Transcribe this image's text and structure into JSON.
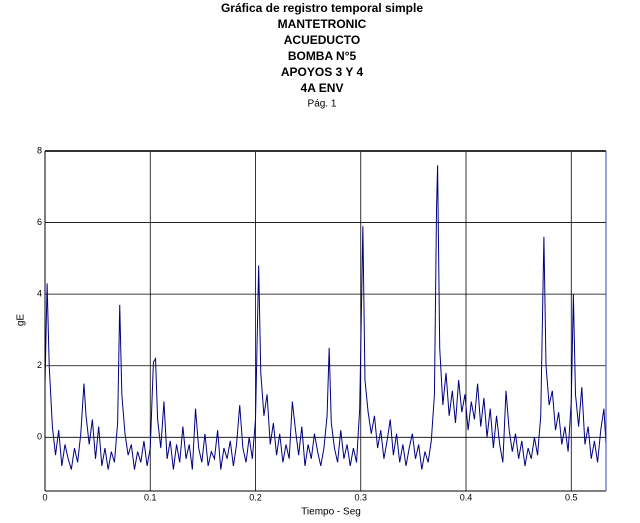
{
  "chart_data": {
    "type": "line",
    "title": "Gráfica de registro temporal simple",
    "subtitle": [
      "MANTETRONIC",
      "ACUEDUCTO",
      "BOMBA N°5",
      "APOYOS 3 Y 4",
      "4A ENV"
    ],
    "page_label": "Pág. 1",
    "xlabel": "Tiempo - Seg",
    "ylabel": "gE",
    "color": "#000080",
    "grid": true,
    "xlim": [
      0,
      0.533
    ],
    "ylim": [
      -1.5,
      8
    ],
    "xticks": [
      0,
      0.1,
      0.2,
      0.3,
      0.4,
      0.5
    ],
    "yticks": [
      0,
      2,
      4,
      6,
      8
    ],
    "x": [
      0.0,
      0.002,
      0.004,
      0.007,
      0.01,
      0.013,
      0.016,
      0.019,
      0.022,
      0.025,
      0.028,
      0.031,
      0.034,
      0.037,
      0.039,
      0.042,
      0.045,
      0.048,
      0.051,
      0.054,
      0.057,
      0.06,
      0.063,
      0.066,
      0.069,
      0.071,
      0.073,
      0.076,
      0.079,
      0.082,
      0.085,
      0.088,
      0.091,
      0.094,
      0.097,
      0.1,
      0.103,
      0.105,
      0.107,
      0.11,
      0.113,
      0.116,
      0.119,
      0.122,
      0.125,
      0.128,
      0.131,
      0.134,
      0.137,
      0.14,
      0.143,
      0.146,
      0.149,
      0.152,
      0.155,
      0.158,
      0.161,
      0.164,
      0.167,
      0.17,
      0.173,
      0.176,
      0.179,
      0.182,
      0.185,
      0.188,
      0.191,
      0.194,
      0.197,
      0.2,
      0.203,
      0.205,
      0.208,
      0.211,
      0.214,
      0.217,
      0.22,
      0.223,
      0.226,
      0.229,
      0.232,
      0.235,
      0.238,
      0.241,
      0.244,
      0.247,
      0.25,
      0.253,
      0.256,
      0.259,
      0.262,
      0.265,
      0.268,
      0.27,
      0.272,
      0.275,
      0.278,
      0.281,
      0.284,
      0.287,
      0.29,
      0.293,
      0.296,
      0.299,
      0.302,
      0.304,
      0.307,
      0.31,
      0.313,
      0.316,
      0.319,
      0.322,
      0.325,
      0.328,
      0.331,
      0.334,
      0.337,
      0.34,
      0.343,
      0.346,
      0.349,
      0.352,
      0.355,
      0.358,
      0.361,
      0.364,
      0.367,
      0.37,
      0.372,
      0.373,
      0.375,
      0.378,
      0.381,
      0.384,
      0.387,
      0.39,
      0.393,
      0.396,
      0.399,
      0.402,
      0.405,
      0.408,
      0.411,
      0.414,
      0.417,
      0.42,
      0.423,
      0.426,
      0.429,
      0.432,
      0.435,
      0.438,
      0.441,
      0.444,
      0.447,
      0.45,
      0.453,
      0.456,
      0.459,
      0.462,
      0.465,
      0.468,
      0.471,
      0.474,
      0.476,
      0.479,
      0.482,
      0.485,
      0.488,
      0.491,
      0.494,
      0.497,
      0.5,
      0.502,
      0.504,
      0.507,
      0.51,
      0.513,
      0.516,
      0.519,
      0.522,
      0.525,
      0.528,
      0.531,
      0.533
    ],
    "values": [
      1.5,
      4.3,
      2.0,
      0.3,
      -0.5,
      0.2,
      -0.8,
      -0.2,
      -0.6,
      -0.9,
      -0.3,
      -0.7,
      0.1,
      1.5,
      0.6,
      -0.2,
      0.5,
      -0.6,
      0.3,
      -0.8,
      -0.3,
      -0.9,
      -0.4,
      -0.7,
      0.4,
      3.7,
      1.2,
      0.1,
      -0.5,
      -0.2,
      -0.9,
      -0.4,
      -0.7,
      -0.1,
      -0.8,
      -0.3,
      2.1,
      2.2,
      0.5,
      -0.3,
      1.0,
      -0.6,
      -0.1,
      -0.9,
      -0.2,
      -0.7,
      0.3,
      -0.6,
      -0.2,
      -0.9,
      0.8,
      -0.3,
      -0.7,
      0.1,
      -0.8,
      -0.4,
      -0.6,
      0.2,
      -0.9,
      -0.3,
      -0.6,
      -0.1,
      -0.8,
      -0.2,
      0.9,
      -0.3,
      -0.7,
      0.0,
      -0.6,
      0.5,
      4.8,
      1.8,
      0.6,
      1.2,
      -0.2,
      0.4,
      -0.5,
      0.1,
      -0.7,
      -0.2,
      -0.6,
      1.0,
      0.2,
      -0.5,
      0.3,
      -0.8,
      -0.2,
      -0.6,
      0.1,
      -0.4,
      -0.8,
      -0.3,
      0.6,
      2.5,
      0.4,
      -0.3,
      -0.7,
      0.2,
      -0.6,
      -0.2,
      -0.8,
      -0.3,
      -0.7,
      0.8,
      5.9,
      1.6,
      0.7,
      0.1,
      0.6,
      -0.3,
      0.2,
      -0.6,
      -0.1,
      0.5,
      -0.5,
      0.1,
      -0.7,
      -0.2,
      -0.8,
      -0.3,
      0.1,
      -0.6,
      -0.2,
      -0.9,
      -0.4,
      -0.7,
      -0.1,
      1.2,
      6.4,
      7.6,
      2.5,
      0.9,
      1.8,
      0.6,
      1.3,
      0.4,
      1.6,
      0.7,
      1.2,
      0.2,
      1.0,
      0.5,
      1.5,
      0.3,
      1.1,
      0.0,
      0.8,
      -0.3,
      0.6,
      -0.2,
      -0.7,
      1.3,
      0.2,
      -0.4,
      0.1,
      -0.6,
      -0.1,
      -0.8,
      -0.3,
      -0.6,
      0.0,
      -0.5,
      0.6,
      5.6,
      2.0,
      0.9,
      1.3,
      0.2,
      0.7,
      -0.2,
      0.3,
      -0.4,
      1.0,
      4.0,
      1.2,
      0.3,
      1.4,
      -0.2,
      0.3,
      -0.6,
      -0.1,
      -0.7,
      0.2,
      0.8,
      -0.2
    ]
  }
}
